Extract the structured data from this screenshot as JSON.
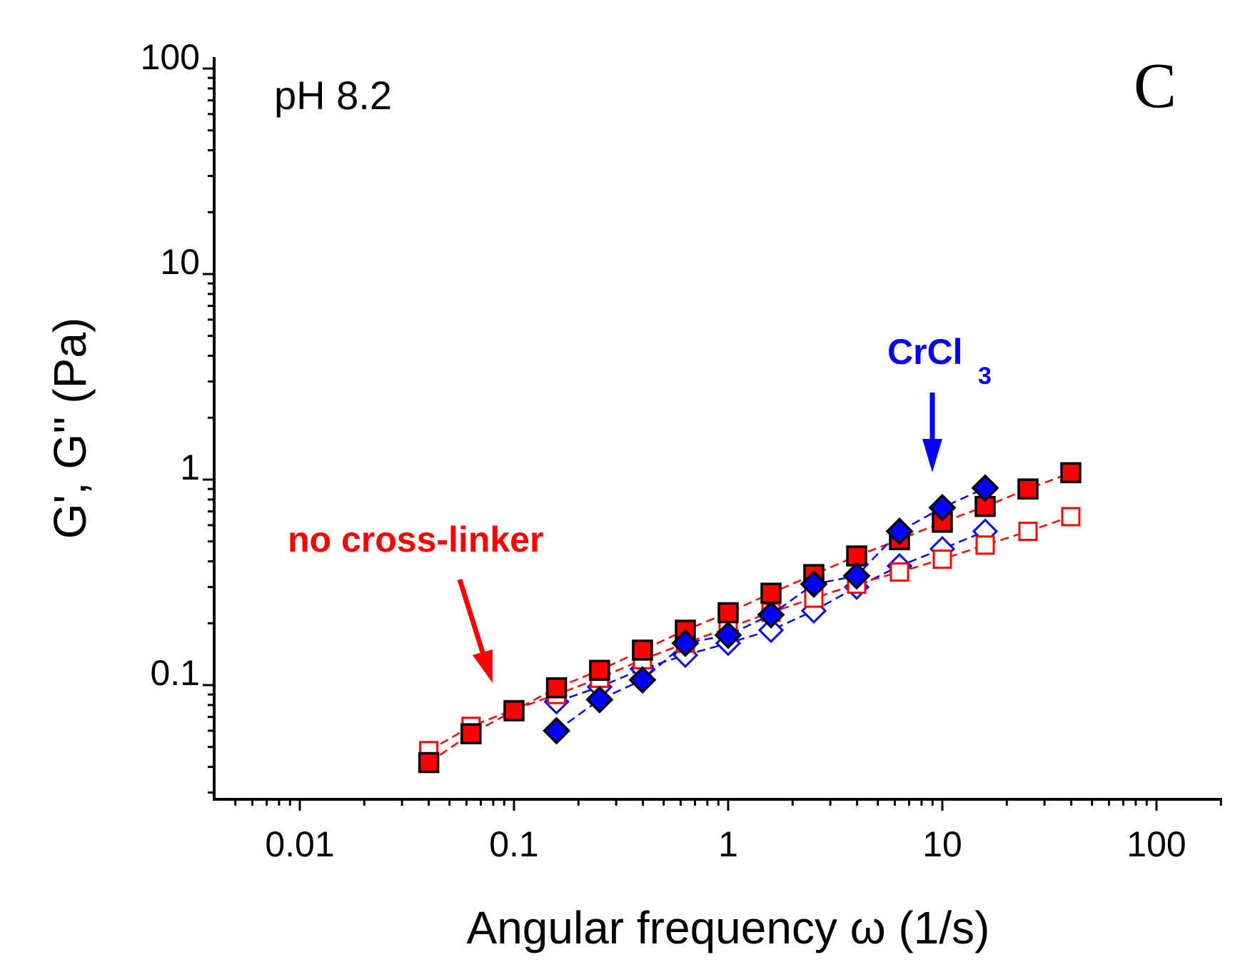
{
  "chart_data": {
    "type": "scatter",
    "xscale": "log",
    "yscale": "log",
    "xlim": [
      0.005,
      200
    ],
    "ylim": [
      0.025,
      100
    ],
    "xlabel": "Angular frequency ω (1/s)",
    "ylabel": "G', G'' (Pa)",
    "x_tick_labels": [
      "0.01",
      "0.1",
      "1",
      "10",
      "100"
    ],
    "y_tick_labels": [
      "0.1",
      "1",
      "10",
      "100"
    ],
    "panel_letter": "C",
    "condition_label": "pH 8.2",
    "annotations": {
      "no_crosslinker": "no cross-linker",
      "crcl3_main": "CrCl",
      "crcl3_sub": "3"
    },
    "series": [
      {
        "name": "no cross-linker G'",
        "marker": "square-filled",
        "color": "#ff0000",
        "x": [
          0.04,
          0.063,
          0.1,
          0.158,
          0.251,
          0.398,
          0.631,
          1.0,
          1.585,
          2.512,
          3.981,
          6.31,
          10.0,
          15.85,
          25.12,
          39.81
        ],
        "y": [
          0.042,
          0.058,
          0.075,
          0.097,
          0.118,
          0.148,
          0.185,
          0.225,
          0.28,
          0.345,
          0.425,
          0.51,
          0.62,
          0.74,
          0.9,
          1.08
        ]
      },
      {
        "name": "no cross-linker G''",
        "marker": "square-open",
        "color": "#ff0000",
        "x": [
          0.04,
          0.063,
          0.1,
          0.158,
          0.251,
          0.398,
          0.631,
          1.0,
          1.585,
          2.512,
          3.981,
          6.31,
          10.0,
          15.85,
          25.12,
          39.81
        ],
        "y": [
          0.048,
          0.063,
          0.076,
          0.09,
          0.108,
          0.133,
          0.16,
          0.19,
          0.226,
          0.265,
          0.31,
          0.355,
          0.41,
          0.48,
          0.56,
          0.66
        ]
      },
      {
        "name": "CrCl3 G'",
        "marker": "diamond-filled",
        "color": "#0000ff",
        "x": [
          0.158,
          0.251,
          0.398,
          0.631,
          1.0,
          1.585,
          2.512,
          3.981,
          6.31,
          10.0,
          15.85
        ],
        "y": [
          0.06,
          0.085,
          0.106,
          0.16,
          0.175,
          0.22,
          0.31,
          0.34,
          0.56,
          0.73,
          0.91
        ]
      },
      {
        "name": "CrCl3 G''",
        "marker": "diamond-open",
        "color": "#0000ff",
        "x": [
          0.158,
          0.251,
          0.398,
          0.631,
          1.0,
          1.585,
          2.512,
          3.981,
          6.31,
          10.0,
          15.85
        ],
        "y": [
          0.083,
          0.098,
          0.12,
          0.14,
          0.16,
          0.185,
          0.23,
          0.3,
          0.38,
          0.46,
          0.56
        ]
      }
    ]
  }
}
